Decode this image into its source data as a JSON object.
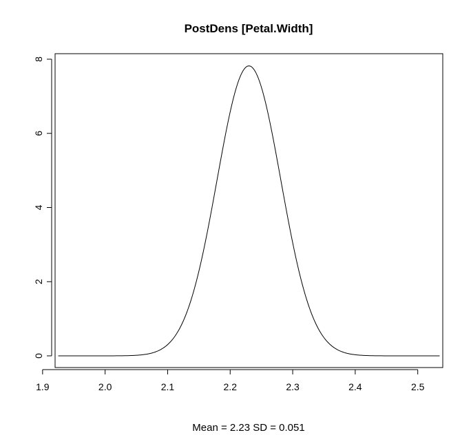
{
  "chart_data": {
    "type": "line",
    "title": "PostDens [Petal.Width]",
    "xlabel": "Mean = 2.23 SD = 0.051",
    "ylabel": "",
    "xlim": [
      1.92,
      2.54
    ],
    "ylim": [
      0,
      8
    ],
    "xticks": [
      "1.9",
      "2.0",
      "2.1",
      "2.2",
      "2.3",
      "2.4",
      "2.5"
    ],
    "yticks": [
      "0",
      "2",
      "4",
      "6",
      "8"
    ],
    "xtick_values": [
      1.9,
      2.0,
      2.1,
      2.2,
      2.3,
      2.4,
      2.5
    ],
    "ytick_values": [
      0,
      2,
      4,
      6,
      8
    ],
    "grid": false,
    "series": [
      {
        "distribution": "normal",
        "mean": 2.23,
        "sd": 0.051,
        "x_range": [
          1.925,
          2.535
        ],
        "peak_density": 7.82,
        "color": "#000000"
      }
    ]
  }
}
